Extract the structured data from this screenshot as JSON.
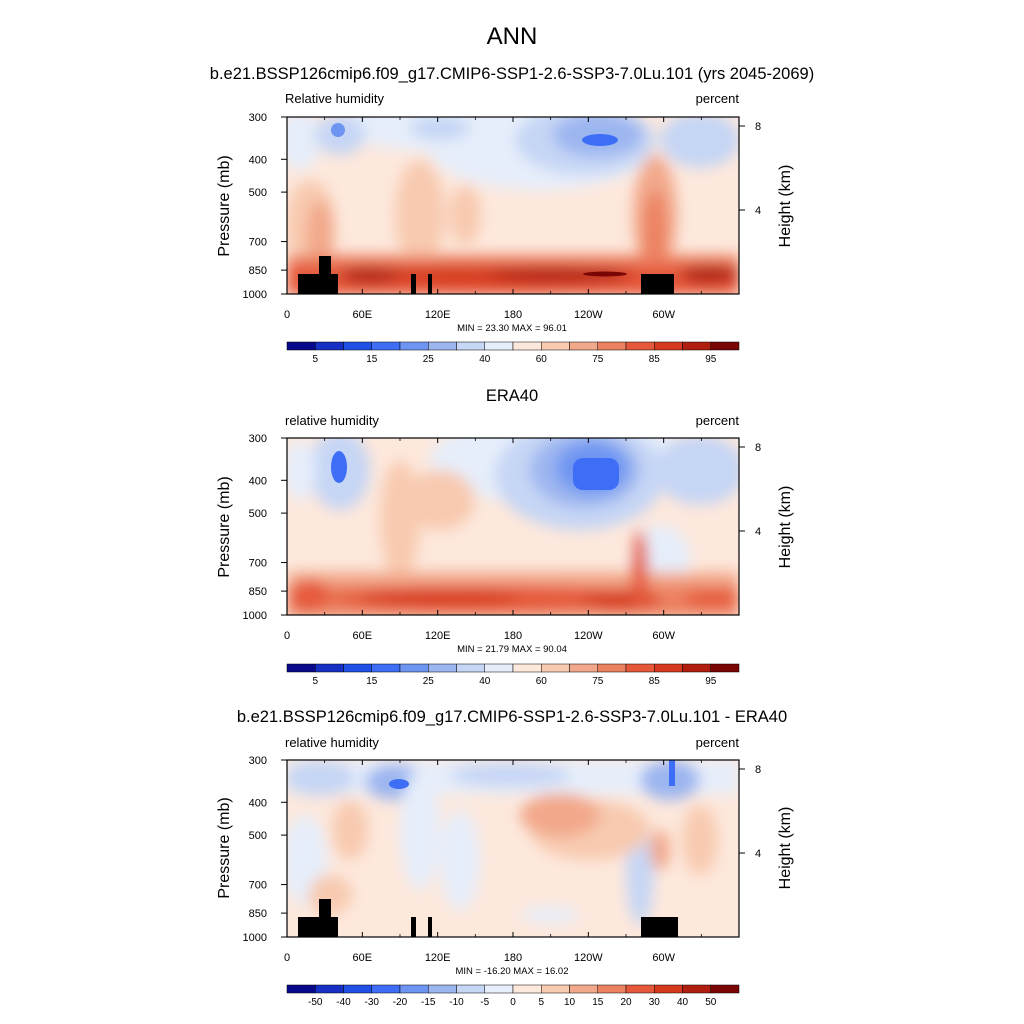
{
  "figure": {
    "title": "ANN",
    "title_panel1": "b.e21.BSSP126cmip6.f09_g17.CMIP6-SSP1-2.6-SSP3-7.0Lu.101 (yrs 2045-2069)",
    "title_panel2": "ERA40",
    "title_panel3": "b.e21.BSSP126cmip6.f09_g17.CMIP6-SSP1-2.6-SSP3-7.0Lu.101 - ERA40"
  },
  "chart_data": [
    {
      "type": "heatmap",
      "title": "b.e21.BSSP126cmip6.f09_g17.CMIP6-SSP1-2.6-SSP3-7.0Lu.101 (yrs 2045-2069)",
      "left_label": "Relative humidity",
      "right_label": "percent",
      "ylabel": "Pressure (mb)",
      "ylabel_right": "Height (km)",
      "x_ticks": [
        "0",
        "60E",
        "120E",
        "180",
        "120W",
        "60W"
      ],
      "y_ticks": [
        "300",
        "400",
        "500",
        "700",
        "850",
        "1000"
      ],
      "y_right_ticks": [
        "8",
        "4"
      ],
      "stats": "MIN =  23.30  MAX =  96.01",
      "min": 23.3,
      "max": 96.01,
      "colorbar_labels": [
        "5",
        "15",
        "25",
        "40",
        "60",
        "75",
        "85",
        "95"
      ],
      "terrain_mask": true
    },
    {
      "type": "heatmap",
      "title": "ERA40",
      "left_label": "relative humidity",
      "right_label": "percent",
      "ylabel": "Pressure (mb)",
      "ylabel_right": "Height (km)",
      "x_ticks": [
        "0",
        "60E",
        "120E",
        "180",
        "120W",
        "60W"
      ],
      "y_ticks": [
        "300",
        "400",
        "500",
        "700",
        "850",
        "1000"
      ],
      "y_right_ticks": [
        "8",
        "4"
      ],
      "stats": "MIN =  21.79  MAX =  90.04",
      "min": 21.79,
      "max": 90.04,
      "colorbar_labels": [
        "5",
        "15",
        "25",
        "40",
        "60",
        "75",
        "85",
        "95"
      ],
      "terrain_mask": false
    },
    {
      "type": "heatmap",
      "title": "b.e21.BSSP126cmip6.f09_g17.CMIP6-SSP1-2.6-SSP3-7.0Lu.101 - ERA40",
      "left_label": "relative humidity",
      "right_label": "percent",
      "ylabel": "Pressure (mb)",
      "ylabel_right": "Height (km)",
      "x_ticks": [
        "0",
        "60E",
        "120E",
        "180",
        "120W",
        "60W"
      ],
      "y_ticks": [
        "300",
        "400",
        "500",
        "700",
        "850",
        "1000"
      ],
      "y_right_ticks": [
        "8",
        "4"
      ],
      "stats": "MIN = -16.20  MAX =  16.02",
      "min": -16.2,
      "max": 16.02,
      "colorbar_labels": [
        "-50",
        "-40",
        "-30",
        "-20",
        "-15",
        "-10",
        "-5",
        "0",
        "5",
        "10",
        "15",
        "20",
        "30",
        "40",
        "50"
      ],
      "terrain_mask": true
    }
  ],
  "colors": {
    "colorbar16": [
      "#08088a",
      "#1530c2",
      "#2050e6",
      "#3d6ef5",
      "#6e95f2",
      "#9cb6f0",
      "#c6d6f5",
      "#e6eefb",
      "#fde8dc",
      "#f8cab0",
      "#f2a98b",
      "#ec8160",
      "#e5583a",
      "#d63a1e",
      "#b01e10",
      "#7a0505"
    ],
    "terrain": "#000000"
  }
}
